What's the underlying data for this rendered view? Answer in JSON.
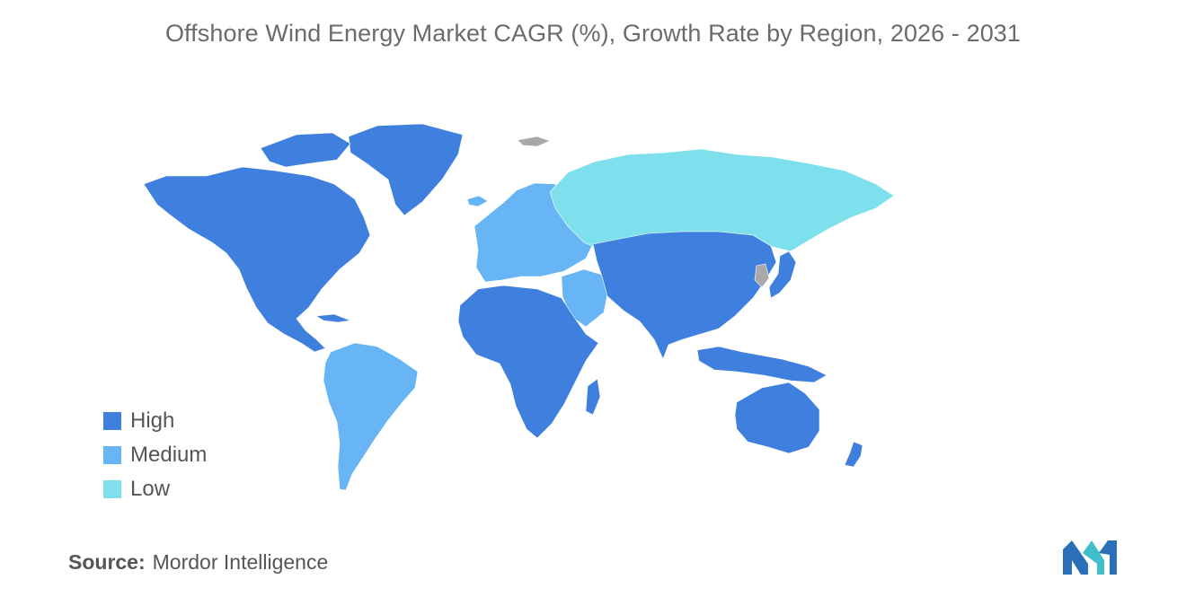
{
  "title": "Offshore Wind Energy Market CAGR (%), Growth Rate by Region, 2026 - 2031",
  "legend": [
    {
      "label": "High",
      "color": "#3f7fde"
    },
    {
      "label": "Medium",
      "color": "#68b5f5"
    },
    {
      "label": "Low",
      "color": "#7fe0ed"
    }
  ],
  "no_data_color": "#a8a8a8",
  "regions": {
    "north_america": "High",
    "greenland": "High",
    "south_america": "Medium",
    "europe": "Medium",
    "middle_east": "Medium",
    "russia": "Low",
    "africa": "High",
    "asia": "High",
    "oceania": "High"
  },
  "source": {
    "label": "Source:",
    "value": "Mordor Intelligence"
  },
  "logo_colors": [
    "#2a6fb8",
    "#3fbfc9"
  ]
}
